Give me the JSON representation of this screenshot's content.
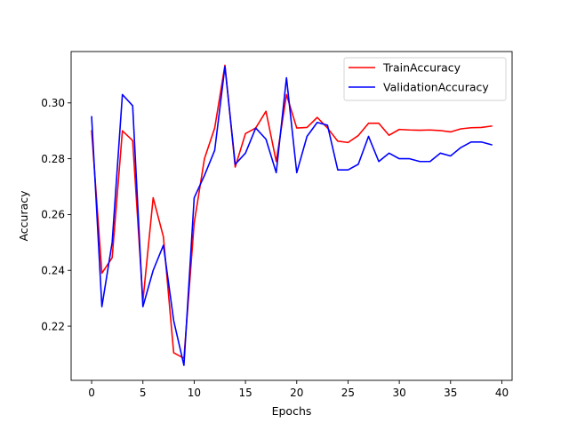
{
  "chart_data": {
    "type": "line",
    "title": "",
    "xlabel": "Epochs",
    "ylabel": "Accuracy",
    "xlim": [
      -2,
      41
    ],
    "ylim": [
      0.2006,
      0.3184
    ],
    "xticks": [
      0,
      5,
      10,
      15,
      20,
      25,
      30,
      35,
      40
    ],
    "yticks": [
      0.22,
      0.24,
      0.26,
      0.28,
      0.3
    ],
    "grid": false,
    "legend_position": "top-right",
    "x": [
      0,
      1,
      2,
      3,
      4,
      5,
      6,
      7,
      8,
      9,
      10,
      11,
      12,
      13,
      14,
      15,
      16,
      17,
      18,
      19,
      20,
      21,
      22,
      23,
      24,
      25,
      26,
      27,
      28,
      29,
      30,
      31,
      32,
      33,
      34,
      35,
      36,
      37,
      38,
      39
    ],
    "series": [
      {
        "name": "TrainAccuracy",
        "color": "#ff0000",
        "values": [
          0.29,
          0.239,
          0.2445,
          0.29,
          0.2865,
          0.229,
          0.266,
          0.252,
          0.2105,
          0.2085,
          0.257,
          0.28,
          0.291,
          0.3135,
          0.277,
          0.289,
          0.291,
          0.297,
          0.279,
          0.303,
          0.291,
          0.2912,
          0.2948,
          0.291,
          0.2863,
          0.2858,
          0.2883,
          0.2927,
          0.2927,
          0.2884,
          0.2905,
          0.2903,
          0.2902,
          0.2903,
          0.2901,
          0.2896,
          0.2907,
          0.2911,
          0.2912,
          0.2917
        ]
      },
      {
        "name": "ValidationAccuracy",
        "color": "#0000ff",
        "values": [
          0.295,
          0.227,
          0.25,
          0.303,
          0.299,
          0.227,
          0.24,
          0.249,
          0.222,
          0.206,
          0.266,
          0.274,
          0.283,
          0.313,
          0.278,
          0.282,
          0.291,
          0.287,
          0.275,
          0.309,
          0.275,
          0.288,
          0.293,
          0.292,
          0.276,
          0.276,
          0.278,
          0.288,
          0.279,
          0.282,
          0.28,
          0.28,
          0.279,
          0.279,
          0.282,
          0.281,
          0.284,
          0.286,
          0.286,
          0.285
        ]
      }
    ]
  }
}
